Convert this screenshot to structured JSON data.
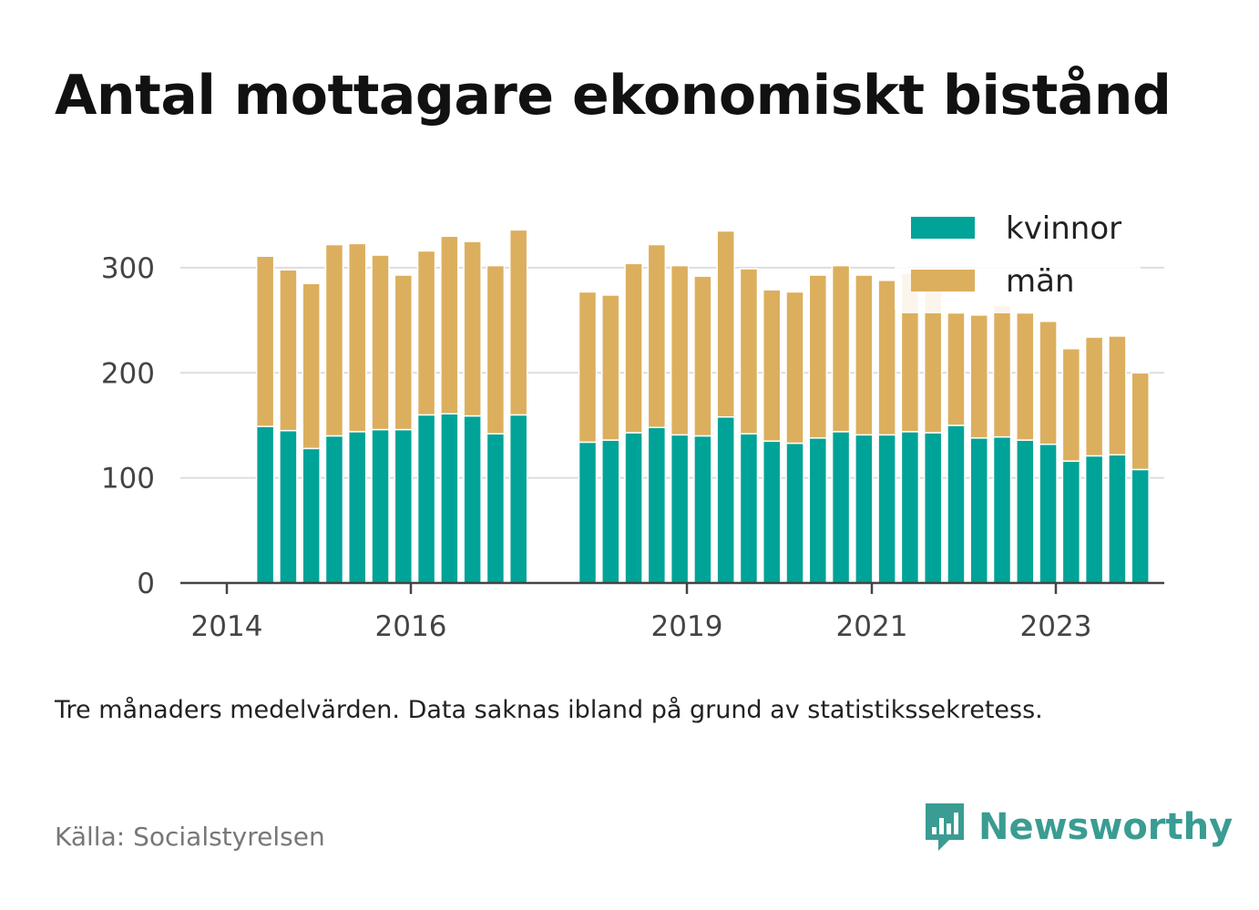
{
  "title": "Antal mottagare ekonomiskt bistånd",
  "note": "Tre månaders medelvärden. Data saknas ibland på grund av statistikssekretess.",
  "source": "Källa: Socialstyrelsen",
  "brand": {
    "name": "Newsworthy",
    "icon": "newsworthy-logo-icon"
  },
  "colors": {
    "kvinnor": "#00a398",
    "man": "#dcaf5e",
    "grid": "#dddddd",
    "axis": "#444444"
  },
  "chart_data": {
    "type": "bar",
    "stacked": true,
    "title": "Antal mottagare ekonomiskt bistånd",
    "xlabel": "",
    "ylabel": "",
    "ylim": [
      0,
      345
    ],
    "yticks": [
      0,
      100,
      200,
      300
    ],
    "xticks": [
      "2014",
      "2016",
      "2019",
      "2021",
      "2023"
    ],
    "grid": true,
    "legend_position": "top-right",
    "x": [
      "2014-05",
      "2014-08",
      "2014-11",
      "2015-02",
      "2015-05",
      "2015-08",
      "2015-11",
      "2016-02",
      "2016-05",
      "2016-08",
      "2016-11",
      "2017-02",
      "2017-11",
      "2018-02",
      "2018-05",
      "2018-08",
      "2018-11",
      "2019-02",
      "2019-05",
      "2019-08",
      "2019-11",
      "2020-02",
      "2020-05",
      "2020-08",
      "2020-11",
      "2021-02",
      "2021-05",
      "2021-08",
      "2021-11",
      "2022-02",
      "2022-05",
      "2022-08",
      "2022-11",
      "2023-02",
      "2023-05",
      "2023-08",
      "2023-11"
    ],
    "series": [
      {
        "name": "kvinnor",
        "values": [
          149,
          145,
          128,
          140,
          144,
          146,
          146,
          160,
          161,
          159,
          142,
          160,
          134,
          136,
          143,
          148,
          141,
          140,
          158,
          142,
          135,
          133,
          138,
          144,
          141,
          141,
          144,
          143,
          150,
          138,
          139,
          136,
          132,
          116,
          121,
          122,
          108
        ]
      },
      {
        "name": "män",
        "values": [
          162,
          153,
          157,
          182,
          179,
          166,
          147,
          156,
          169,
          166,
          160,
          176,
          143,
          138,
          161,
          174,
          161,
          152,
          177,
          157,
          144,
          144,
          155,
          158,
          152,
          147,
          151,
          140,
          107,
          117,
          125,
          121,
          117,
          107,
          113,
          113,
          92
        ]
      }
    ]
  }
}
